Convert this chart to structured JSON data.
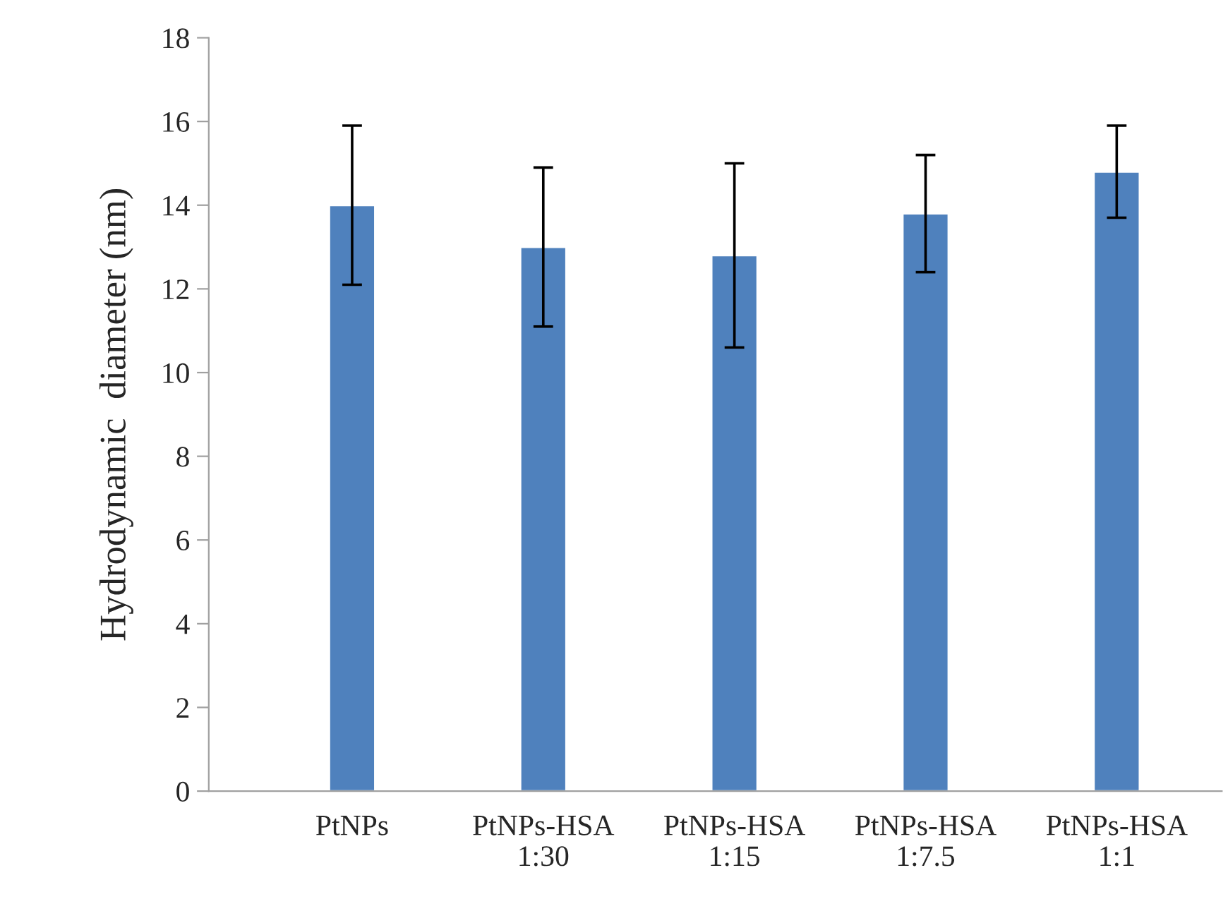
{
  "chart_data": {
    "type": "bar",
    "ylabel": "Hydrodynamic  diameter (nm)",
    "categories": [
      "PtNPs",
      "PtNPs-HSA\n1:30",
      "PtNPs-HSA\n1:15",
      "PtNPs-HSA\n1:7.5",
      "PtNPs-HSA\n1:1"
    ],
    "values": [
      14.0,
      13.0,
      12.8,
      13.8,
      14.8
    ],
    "errors": [
      1.9,
      1.9,
      2.2,
      1.4,
      1.1
    ],
    "color": "#4f81bd",
    "ylim": [
      0,
      18
    ],
    "yticks": [
      0,
      2,
      4,
      6,
      8,
      10,
      12,
      14,
      16,
      18
    ],
    "grid": false,
    "legend": false
  }
}
